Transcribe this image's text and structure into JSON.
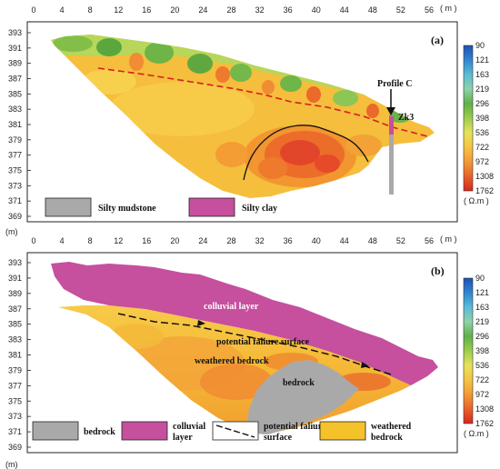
{
  "x_axis": {
    "ticks": [
      "0",
      "4",
      "8",
      "12",
      "16",
      "20",
      "24",
      "28",
      "32",
      "36",
      "40",
      "44",
      "48",
      "52",
      "56"
    ],
    "unit": "( m )"
  },
  "y_axis": {
    "ticks": [
      "393",
      "391",
      "389",
      "387",
      "385",
      "383",
      "381",
      "379",
      "377",
      "375",
      "373",
      "371",
      "369"
    ],
    "unit": "(m)"
  },
  "colorbar": {
    "values": [
      "90",
      "121",
      "163",
      "219",
      "296",
      "398",
      "536",
      "722",
      "972",
      "1308",
      "1762"
    ],
    "colors": [
      "#1f4fb5",
      "#2f86d0",
      "#5cbbd6",
      "#8fd2a8",
      "#5fb04a",
      "#9ccd4f",
      "#e7e25a",
      "#f5c443",
      "#f39a36",
      "#e8622c",
      "#d7261e"
    ],
    "unit": "( Ω.m )"
  },
  "panel_a": {
    "label": "(a)",
    "profile_label": "Profile C",
    "borehole_label": "Zk3",
    "legend": [
      {
        "label": "Silty mudstone",
        "color": "#a9a9a9"
      },
      {
        "label": "Silty clay",
        "color": "#c64f9e"
      }
    ]
  },
  "panel_b": {
    "label": "(b)",
    "colluvial_label": "colluvial layer",
    "failure_label": "potential faliure surface",
    "weathered_label": "weathered bedrock",
    "bedrock_label": "bedrock",
    "legend": [
      {
        "label": "bedrock",
        "color": "#a9a9a9"
      },
      {
        "label": "colluvial layer",
        "color": "#c64f9e"
      },
      {
        "label": "potential faliure surface",
        "color": "#ffffff"
      },
      {
        "label": "weathered bedrock",
        "color": "#f5c22a"
      }
    ]
  }
}
